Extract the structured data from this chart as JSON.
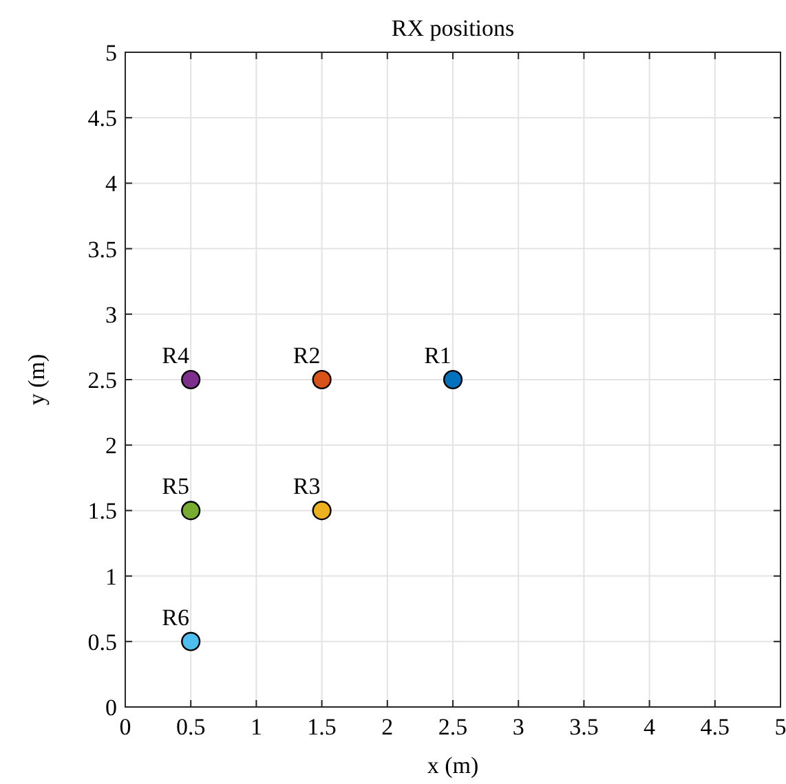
{
  "chart_data": {
    "type": "scatter",
    "title": "RX positions",
    "xlabel": "x (m)",
    "ylabel": "y (m)",
    "xlim": [
      0,
      5
    ],
    "ylim": [
      0,
      5
    ],
    "xticks": [
      0,
      0.5,
      1,
      1.5,
      2,
      2.5,
      3,
      3.5,
      4,
      4.5,
      5
    ],
    "yticks": [
      0,
      0.5,
      1,
      1.5,
      2,
      2.5,
      3,
      3.5,
      4,
      4.5,
      5
    ],
    "grid": true,
    "legend": false,
    "marker": "circle",
    "series": [
      {
        "name": "R1",
        "color": "#0072bd",
        "x": [
          2.5
        ],
        "values": [
          2.5
        ]
      },
      {
        "name": "R2",
        "color": "#d95319",
        "x": [
          1.5
        ],
        "values": [
          2.5
        ]
      },
      {
        "name": "R3",
        "color": "#edb120",
        "x": [
          1.5
        ],
        "values": [
          1.5
        ]
      },
      {
        "name": "R4",
        "color": "#7e2f8e",
        "x": [
          0.5
        ],
        "values": [
          2.5
        ]
      },
      {
        "name": "R5",
        "color": "#77ac30",
        "x": [
          0.5
        ],
        "values": [
          1.5
        ]
      },
      {
        "name": "R6",
        "color": "#4dbeee",
        "x": [
          0.5
        ],
        "values": [
          0.5
        ]
      }
    ]
  }
}
